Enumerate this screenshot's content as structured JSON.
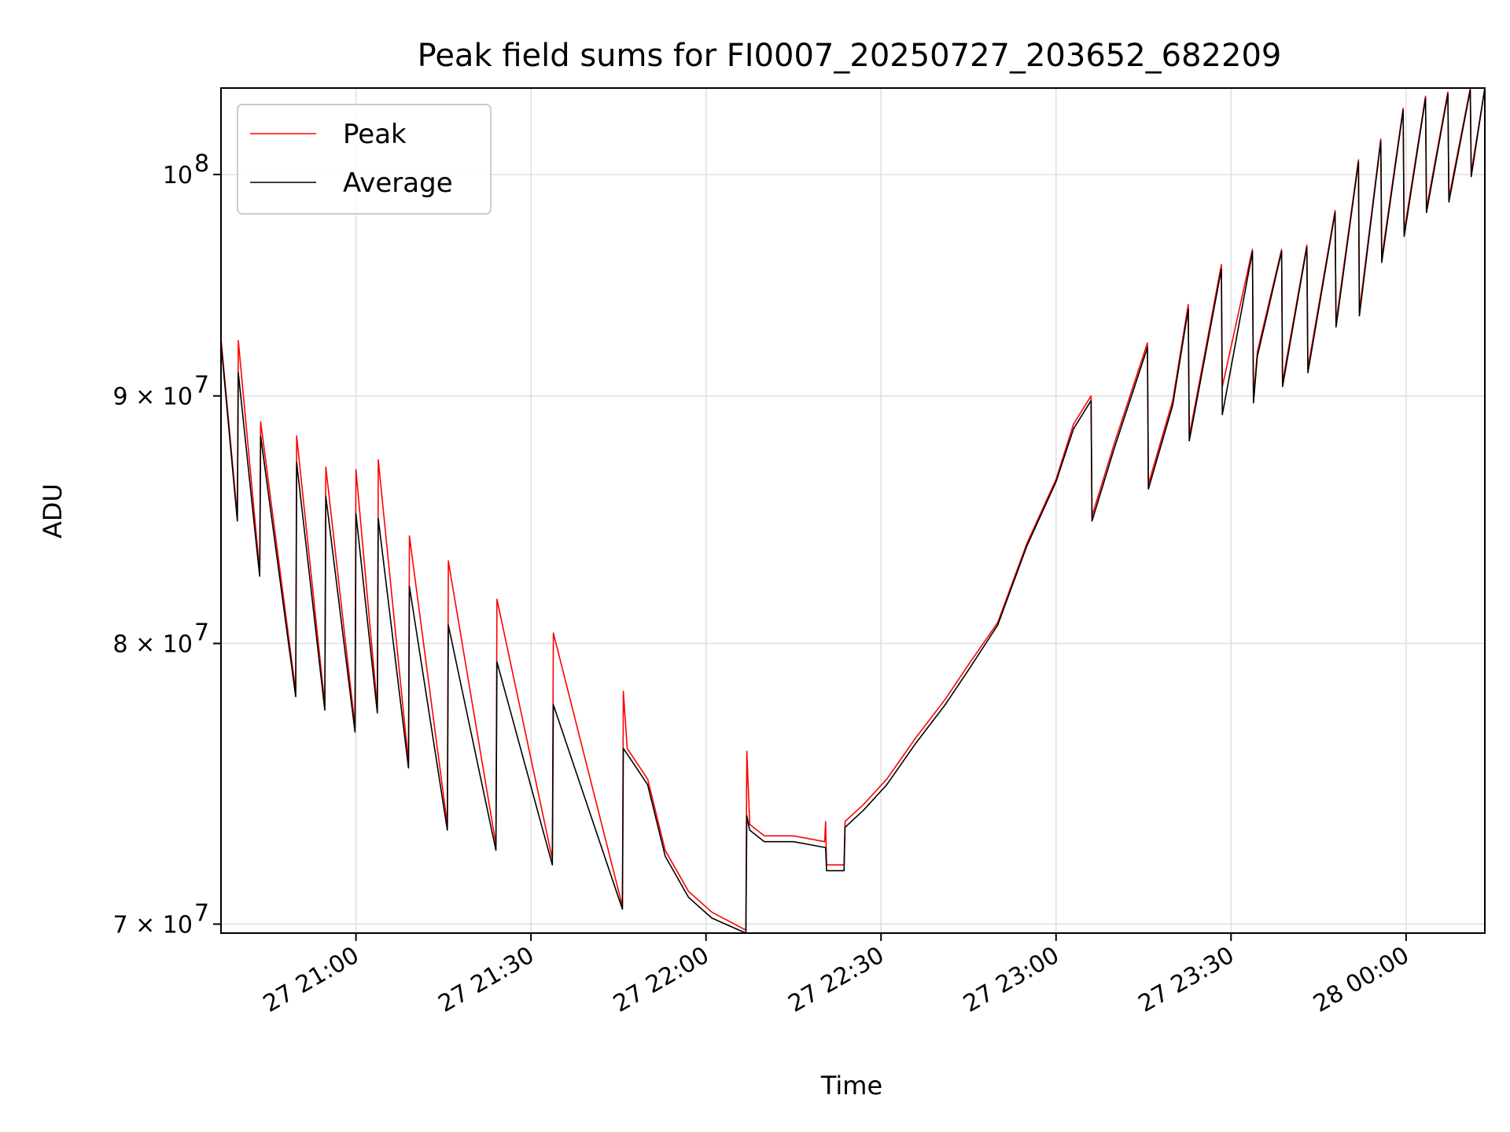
{
  "chart_data": {
    "type": "line",
    "title": "Peak field sums for FI0007_20250727_203652_682209",
    "xlabel": "Time",
    "ylabel": "ADU",
    "y_scale": "log",
    "ylim": [
      69700000,
      104200000
    ],
    "xlim": [
      "2025-07-27 20:36:52",
      "2025-07-28 00:13:30"
    ],
    "x_ticks": [
      {
        "t": "2025-07-27 21:00:00",
        "label": "27 21:00"
      },
      {
        "t": "2025-07-27 21:30:00",
        "label": "27 21:30"
      },
      {
        "t": "2025-07-27 22:00:00",
        "label": "27 22:00"
      },
      {
        "t": "2025-07-27 22:30:00",
        "label": "27 22:30"
      },
      {
        "t": "2025-07-27 23:00:00",
        "label": "27 23:00"
      },
      {
        "t": "2025-07-27 23:30:00",
        "label": "27 23:30"
      },
      {
        "t": "2025-07-28 00:00:00",
        "label": "28 00:00"
      }
    ],
    "y_ticks": [
      {
        "value": 70000000,
        "base": "7 × 10",
        "exp": "7"
      },
      {
        "value": 80000000,
        "base": "8 × 10",
        "exp": "7"
      },
      {
        "value": 90000000,
        "base": "9 × 10",
        "exp": "7"
      },
      {
        "value": 100000000,
        "base": "10",
        "exp": "8"
      }
    ],
    "grid": true,
    "legend_position": "top-left",
    "series": [
      {
        "name": "Peak",
        "color": "#ff0000",
        "points": [
          [
            "2025-07-27 20:36:52",
            92500000
          ],
          [
            "2025-07-27 20:39:40",
            85000000
          ],
          [
            "2025-07-27 20:39:50",
            92400000
          ],
          [
            "2025-07-27 20:43:30",
            82800000
          ],
          [
            "2025-07-27 20:43:40",
            88900000
          ],
          [
            "2025-07-27 20:49:40",
            78200000
          ],
          [
            "2025-07-27 20:49:50",
            88300000
          ],
          [
            "2025-07-27 20:54:40",
            77700000
          ],
          [
            "2025-07-27 20:54:50",
            87000000
          ],
          [
            "2025-07-27 20:59:50",
            76900000
          ],
          [
            "2025-07-27 21:00:00",
            86900000
          ],
          [
            "2025-07-27 21:03:40",
            77600000
          ],
          [
            "2025-07-27 21:03:50",
            87300000
          ],
          [
            "2025-07-27 21:09:00",
            75600000
          ],
          [
            "2025-07-27 21:09:10",
            84200000
          ],
          [
            "2025-07-27 21:15:40",
            73400000
          ],
          [
            "2025-07-27 21:15:50",
            83200000
          ],
          [
            "2025-07-27 21:24:00",
            72700000
          ],
          [
            "2025-07-27 21:24:10",
            81700000
          ],
          [
            "2025-07-27 21:33:40",
            72200000
          ],
          [
            "2025-07-27 21:33:50",
            80400000
          ],
          [
            "2025-07-27 21:45:40",
            70600000
          ],
          [
            "2025-07-27 21:45:50",
            78200000
          ],
          [
            "2025-07-27 21:46:30",
            76100000
          ],
          [
            "2025-07-27 21:50:00",
            75000000
          ],
          [
            "2025-07-27 21:53:00",
            72500000
          ],
          [
            "2025-07-27 21:57:00",
            71100000
          ],
          [
            "2025-07-27 22:01:00",
            70400000
          ],
          [
            "2025-07-27 22:06:50",
            69800000
          ],
          [
            "2025-07-27 22:07:00",
            76000000
          ],
          [
            "2025-07-27 22:07:30",
            73400000
          ],
          [
            "2025-07-27 22:10:00",
            73000000
          ],
          [
            "2025-07-27 22:15:00",
            73000000
          ],
          [
            "2025-07-27 22:20:20",
            72800000
          ],
          [
            "2025-07-27 22:20:30",
            73500000
          ],
          [
            "2025-07-27 22:20:40",
            72000000
          ],
          [
            "2025-07-27 22:23:40",
            72000000
          ],
          [
            "2025-07-27 22:23:50",
            73500000
          ],
          [
            "2025-07-27 22:27:00",
            74100000
          ],
          [
            "2025-07-27 22:31:00",
            75000000
          ],
          [
            "2025-07-27 22:36:00",
            76500000
          ],
          [
            "2025-07-27 22:41:00",
            77900000
          ],
          [
            "2025-07-27 22:45:00",
            79200000
          ],
          [
            "2025-07-27 22:50:00",
            80800000
          ],
          [
            "2025-07-27 22:55:00",
            83900000
          ],
          [
            "2025-07-27 23:00:00",
            86500000
          ],
          [
            "2025-07-27 23:03:00",
            88800000
          ],
          [
            "2025-07-27 23:06:00",
            90000000
          ],
          [
            "2025-07-27 23:06:10",
            85000000
          ],
          [
            "2025-07-27 23:10:00",
            88000000
          ],
          [
            "2025-07-27 23:15:40",
            92300000
          ],
          [
            "2025-07-27 23:15:50",
            86300000
          ],
          [
            "2025-07-27 23:20:00",
            89800000
          ],
          [
            "2025-07-27 23:22:40",
            94000000
          ],
          [
            "2025-07-27 23:22:50",
            88300000
          ],
          [
            "2025-07-27 23:28:20",
            95800000
          ],
          [
            "2025-07-27 23:28:30",
            90400000
          ],
          [
            "2025-07-27 23:33:40",
            96500000
          ],
          [
            "2025-07-27 23:33:50",
            89900000
          ],
          [
            "2025-07-27 23:34:30",
            91900000
          ],
          [
            "2025-07-27 23:38:40",
            96500000
          ],
          [
            "2025-07-27 23:38:50",
            90600000
          ],
          [
            "2025-07-27 23:43:00",
            96700000
          ],
          [
            "2025-07-27 23:43:10",
            91200000
          ],
          [
            "2025-07-27 23:47:50",
            98300000
          ],
          [
            "2025-07-27 23:48:00",
            93200000
          ],
          [
            "2025-07-27 23:51:50",
            100700000
          ],
          [
            "2025-07-27 23:52:00",
            93700000
          ],
          [
            "2025-07-27 23:55:40",
            101700000
          ],
          [
            "2025-07-27 23:55:50",
            96100000
          ],
          [
            "2025-07-27 23:59:30",
            103200000
          ],
          [
            "2025-07-27 23:59:40",
            97300000
          ],
          [
            "2025-07-28 00:03:20",
            103800000
          ],
          [
            "2025-07-28 00:03:30",
            98400000
          ],
          [
            "2025-07-28 00:07:10",
            104000000
          ],
          [
            "2025-07-28 00:07:20",
            98900000
          ],
          [
            "2025-07-28 00:11:00",
            104200000
          ],
          [
            "2025-07-28 00:11:10",
            100100000
          ],
          [
            "2025-07-28 00:13:30",
            104200000
          ]
        ]
      },
      {
        "name": "Average",
        "color": "#000000",
        "points": [
          [
            "2025-07-27 20:36:52",
            92300000
          ],
          [
            "2025-07-27 20:39:40",
            84800000
          ],
          [
            "2025-07-27 20:39:50",
            91000000
          ],
          [
            "2025-07-27 20:43:30",
            82600000
          ],
          [
            "2025-07-27 20:43:40",
            88300000
          ],
          [
            "2025-07-27 20:49:40",
            78000000
          ],
          [
            "2025-07-27 20:49:50",
            87200000
          ],
          [
            "2025-07-27 20:54:40",
            77500000
          ],
          [
            "2025-07-27 20:54:50",
            85800000
          ],
          [
            "2025-07-27 20:59:50",
            76700000
          ],
          [
            "2025-07-27 21:00:00",
            85100000
          ],
          [
            "2025-07-27 21:03:40",
            77400000
          ],
          [
            "2025-07-27 21:03:50",
            84900000
          ],
          [
            "2025-07-27 21:09:00",
            75400000
          ],
          [
            "2025-07-27 21:09:10",
            82200000
          ],
          [
            "2025-07-27 21:15:40",
            73200000
          ],
          [
            "2025-07-27 21:15:50",
            80700000
          ],
          [
            "2025-07-27 21:24:00",
            72500000
          ],
          [
            "2025-07-27 21:24:10",
            79300000
          ],
          [
            "2025-07-27 21:33:40",
            72000000
          ],
          [
            "2025-07-27 21:33:50",
            77700000
          ],
          [
            "2025-07-27 21:45:40",
            70500000
          ],
          [
            "2025-07-27 21:45:50",
            76100000
          ],
          [
            "2025-07-27 21:46:30",
            75900000
          ],
          [
            "2025-07-27 21:50:00",
            74800000
          ],
          [
            "2025-07-27 21:53:00",
            72300000
          ],
          [
            "2025-07-27 21:57:00",
            70900000
          ],
          [
            "2025-07-27 22:01:00",
            70200000
          ],
          [
            "2025-07-27 22:06:50",
            69700000
          ],
          [
            "2025-07-27 22:07:00",
            73700000
          ],
          [
            "2025-07-27 22:07:30",
            73200000
          ],
          [
            "2025-07-27 22:10:00",
            72800000
          ],
          [
            "2025-07-27 22:15:00",
            72800000
          ],
          [
            "2025-07-27 22:20:20",
            72600000
          ],
          [
            "2025-07-27 22:20:30",
            72600000
          ],
          [
            "2025-07-27 22:20:40",
            71800000
          ],
          [
            "2025-07-27 22:23:40",
            71800000
          ],
          [
            "2025-07-27 22:23:50",
            73300000
          ],
          [
            "2025-07-27 22:27:00",
            73900000
          ],
          [
            "2025-07-27 22:31:00",
            74800000
          ],
          [
            "2025-07-27 22:36:00",
            76300000
          ],
          [
            "2025-07-27 22:41:00",
            77700000
          ],
          [
            "2025-07-27 22:45:00",
            79000000
          ],
          [
            "2025-07-27 22:50:00",
            80700000
          ],
          [
            "2025-07-27 22:55:00",
            83800000
          ],
          [
            "2025-07-27 23:00:00",
            86400000
          ],
          [
            "2025-07-27 23:03:00",
            88600000
          ],
          [
            "2025-07-27 23:06:00",
            89800000
          ],
          [
            "2025-07-27 23:06:10",
            84800000
          ],
          [
            "2025-07-27 23:10:00",
            87800000
          ],
          [
            "2025-07-27 23:15:40",
            92100000
          ],
          [
            "2025-07-27 23:15:50",
            86100000
          ],
          [
            "2025-07-27 23:20:00",
            89600000
          ],
          [
            "2025-07-27 23:22:40",
            93800000
          ],
          [
            "2025-07-27 23:22:50",
            88100000
          ],
          [
            "2025-07-27 23:28:20",
            95600000
          ],
          [
            "2025-07-27 23:28:30",
            89200000
          ],
          [
            "2025-07-27 23:33:40",
            96400000
          ],
          [
            "2025-07-27 23:33:50",
            89700000
          ],
          [
            "2025-07-27 23:34:30",
            91700000
          ],
          [
            "2025-07-27 23:38:40",
            96400000
          ],
          [
            "2025-07-27 23:38:50",
            90400000
          ],
          [
            "2025-07-27 23:43:00",
            96600000
          ],
          [
            "2025-07-27 23:43:10",
            91000000
          ],
          [
            "2025-07-27 23:47:50",
            98200000
          ],
          [
            "2025-07-27 23:48:00",
            93000000
          ],
          [
            "2025-07-27 23:51:50",
            100600000
          ],
          [
            "2025-07-27 23:52:00",
            93500000
          ],
          [
            "2025-07-27 23:55:40",
            101600000
          ],
          [
            "2025-07-27 23:55:50",
            95900000
          ],
          [
            "2025-07-27 23:59:30",
            103100000
          ],
          [
            "2025-07-27 23:59:40",
            97100000
          ],
          [
            "2025-07-28 00:03:20",
            103700000
          ],
          [
            "2025-07-28 00:03:30",
            98200000
          ],
          [
            "2025-07-28 00:07:10",
            103900000
          ],
          [
            "2025-07-28 00:07:20",
            98700000
          ],
          [
            "2025-07-28 00:11:00",
            104100000
          ],
          [
            "2025-07-28 00:11:10",
            99900000
          ],
          [
            "2025-07-28 00:13:30",
            104200000
          ]
        ]
      }
    ]
  }
}
